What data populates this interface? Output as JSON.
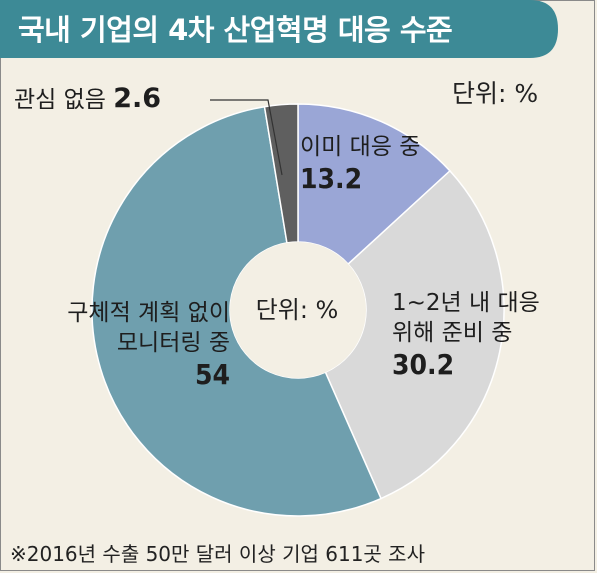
{
  "title": "국내 기업의 4차 산업혁명 대응 수준",
  "unit_top": "단위: %",
  "center_unit": "단위: %",
  "footnote": "※2016년 수출 50만 달러 이상 기업 611곳 조사",
  "colors": {
    "banner": "#3d8a96",
    "background": "#f3efe4"
  },
  "chart_data": {
    "type": "pie",
    "donut": true,
    "slices": [
      {
        "label": "이미 대응 중",
        "label_lines": [
          "이미 대응 중"
        ],
        "value": 13.2,
        "value_text": "13.2",
        "color": "#9aa6d6"
      },
      {
        "label": "1~2년 내 대응 위해 준비 중",
        "label_lines": [
          "1~2년 내 대응",
          "위해 준비 중"
        ],
        "value": 30.2,
        "value_text": "30.2",
        "color": "#d9d9d9"
      },
      {
        "label": "구체적 계획 없이 모니터링 중",
        "label_lines": [
          "구체적 계획 없이",
          "모니터링 중"
        ],
        "value": 54,
        "value_text": "54",
        "color": "#6f9fae"
      },
      {
        "label": "관심 없음",
        "label_lines": [
          "관심 없음"
        ],
        "value": 2.6,
        "value_text": "2.6",
        "color": "#5f5f5f"
      }
    ]
  }
}
